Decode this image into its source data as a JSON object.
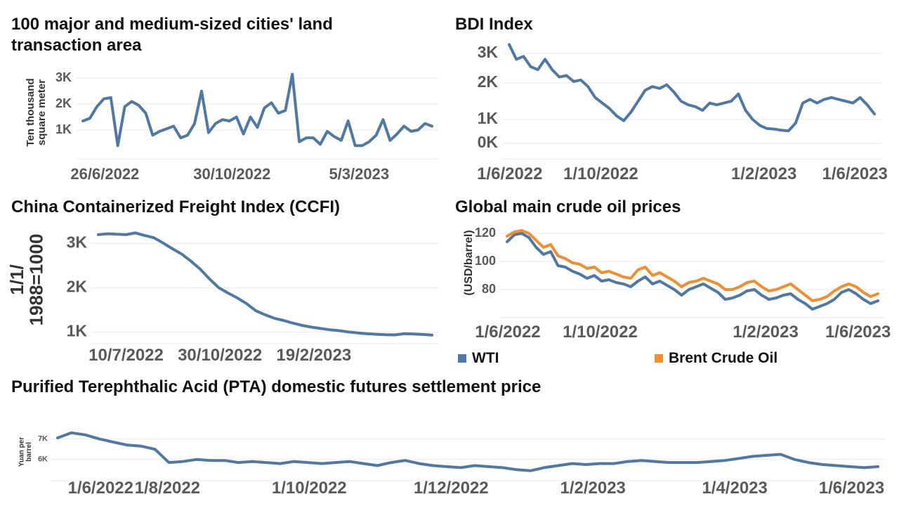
{
  "colors": {
    "primary": "#4e79a7",
    "secondary": "#f28e2b",
    "grid": "#ebebeb",
    "tick": "#5a5a5a"
  },
  "chart_data": [
    {
      "id": "land",
      "type": "line",
      "title": "100 major and medium-sized cities' land transaction area",
      "ylabel": "Ten thousand square meter",
      "xlabel": "",
      "x_ticks": [
        "26/6/2022",
        "30/10/2022",
        "5/3/2023"
      ],
      "y_ticks": [
        "1K",
        "2K",
        "3K"
      ],
      "ylim": [
        0,
        3300
      ],
      "grid": true,
      "series": [
        {
          "values": [
            1350,
            1450,
            1900,
            2200,
            2250,
            400,
            1900,
            2100,
            1950,
            1650,
            800,
            950,
            1050,
            1150,
            700,
            800,
            1250,
            2500,
            900,
            1250,
            1400,
            1350,
            1500,
            850,
            1500,
            1100,
            1850,
            2050,
            1650,
            1750,
            3150,
            550,
            700,
            700,
            450,
            950,
            750,
            600,
            1350,
            400,
            400,
            550,
            800,
            1400,
            600,
            850,
            1150,
            950,
            1000,
            1250,
            1150
          ]
        }
      ]
    },
    {
      "id": "bdi",
      "type": "line",
      "title": "BDI Index",
      "xlabel": "",
      "ylabel": "",
      "x_ticks": [
        "1/6/2022",
        "1/10/2022",
        "1/2/2023",
        "1/6/2023"
      ],
      "y_ticks": [
        "0K",
        "1K",
        "2K",
        "3K"
      ],
      "scale_note": "non-linear y axis",
      "grid": true,
      "series": [
        {
          "values": [
            3300,
            2800,
            2900,
            2550,
            2450,
            2800,
            2450,
            2200,
            2250,
            2050,
            2100,
            1900,
            1600,
            1450,
            1300,
            1100,
            950,
            1200,
            1500,
            1800,
            1900,
            1850,
            1950,
            1750,
            1500,
            1400,
            1350,
            1250,
            1450,
            1400,
            1450,
            1500,
            1700,
            1250,
            1000,
            750,
            620,
            600,
            550,
            520,
            850,
            1450,
            1550,
            1450,
            1550,
            1600,
            1550,
            1500,
            1450,
            1600,
            1400,
            1150
          ]
        }
      ]
    },
    {
      "id": "ccfi",
      "type": "line",
      "title": "China Containerized Freight Index (CCFI)",
      "ylabel": "1/1/1988=1000",
      "xlabel": "",
      "x_ticks": [
        "10/7/2022",
        "30/10/2022",
        "19/2/2023"
      ],
      "y_ticks": [
        "1K",
        "2K",
        "3K"
      ],
      "ylim": [
        800,
        3500
      ],
      "grid": true,
      "series": [
        {
          "values": [
            3200,
            3220,
            3210,
            3200,
            3240,
            3180,
            3130,
            3010,
            2880,
            2760,
            2600,
            2420,
            2200,
            2000,
            1880,
            1770,
            1640,
            1480,
            1390,
            1310,
            1260,
            1200,
            1150,
            1110,
            1080,
            1050,
            1030,
            1000,
            980,
            960,
            950,
            940,
            935,
            960,
            955,
            945,
            930
          ]
        }
      ]
    },
    {
      "id": "crude",
      "type": "line",
      "title": "Global main crude oil prices",
      "ylabel": "(USD/barrel)",
      "xlabel": "",
      "x_ticks": [
        "1/6/2022",
        "1/10/2022",
        "1/2/2023",
        "1/6/2023"
      ],
      "y_ticks": [
        "80",
        "100",
        "120"
      ],
      "ylim": [
        62,
        126
      ],
      "grid": true,
      "legend_position": "bottom",
      "series": [
        {
          "name": "WTI",
          "values": [
            114,
            119,
            120,
            117,
            110,
            105,
            107,
            97,
            96,
            93,
            91,
            88,
            90,
            86,
            87,
            85,
            84,
            82,
            86,
            89,
            84,
            86,
            83,
            80,
            76,
            80,
            82,
            84,
            81,
            78,
            73,
            74,
            76,
            79,
            80,
            76,
            73,
            74,
            76,
            77,
            73,
            70,
            66,
            68,
            70,
            73,
            78,
            80,
            77,
            73,
            70,
            72
          ]
        },
        {
          "name": "Brent Crude Oil",
          "values": [
            118,
            121,
            122,
            120,
            115,
            110,
            112,
            104,
            102,
            99,
            98,
            95,
            96,
            92,
            93,
            91,
            89,
            88,
            94,
            96,
            90,
            92,
            89,
            86,
            82,
            85,
            86,
            88,
            86,
            84,
            80,
            80,
            82,
            85,
            86,
            82,
            79,
            80,
            82,
            84,
            80,
            76,
            72,
            73,
            75,
            79,
            82,
            84,
            82,
            78,
            75,
            77
          ]
        }
      ]
    },
    {
      "id": "pta",
      "type": "line",
      "title": "Purified Terephthalic Acid (PTA) domestic futures settlement price",
      "ylabel": "Yuan per barrel",
      "xlabel": "",
      "x_ticks": [
        "1/6/2022",
        "1/8/2022",
        "1/10/2022",
        "1/12/2022",
        "1/2/2023",
        "1/4/2023",
        "1/6/2023"
      ],
      "y_ticks": [
        "6K",
        "7K"
      ],
      "ylim": [
        5100,
        7500
      ],
      "grid": true,
      "series": [
        {
          "values": [
            7050,
            7300,
            7200,
            7000,
            6850,
            6700,
            6650,
            6500,
            5850,
            5900,
            6000,
            5950,
            5950,
            5850,
            5900,
            5850,
            5800,
            5900,
            5850,
            5800,
            5850,
            5900,
            5800,
            5700,
            5850,
            5950,
            5800,
            5700,
            5650,
            5600,
            5700,
            5650,
            5600,
            5500,
            5450,
            5600,
            5700,
            5800,
            5750,
            5800,
            5800,
            5900,
            5950,
            5900,
            5850,
            5850,
            5850,
            5900,
            5950,
            6050,
            6150,
            6200,
            6250,
            6000,
            5850,
            5750,
            5700,
            5650,
            5600,
            5650
          ]
        }
      ]
    }
  ]
}
